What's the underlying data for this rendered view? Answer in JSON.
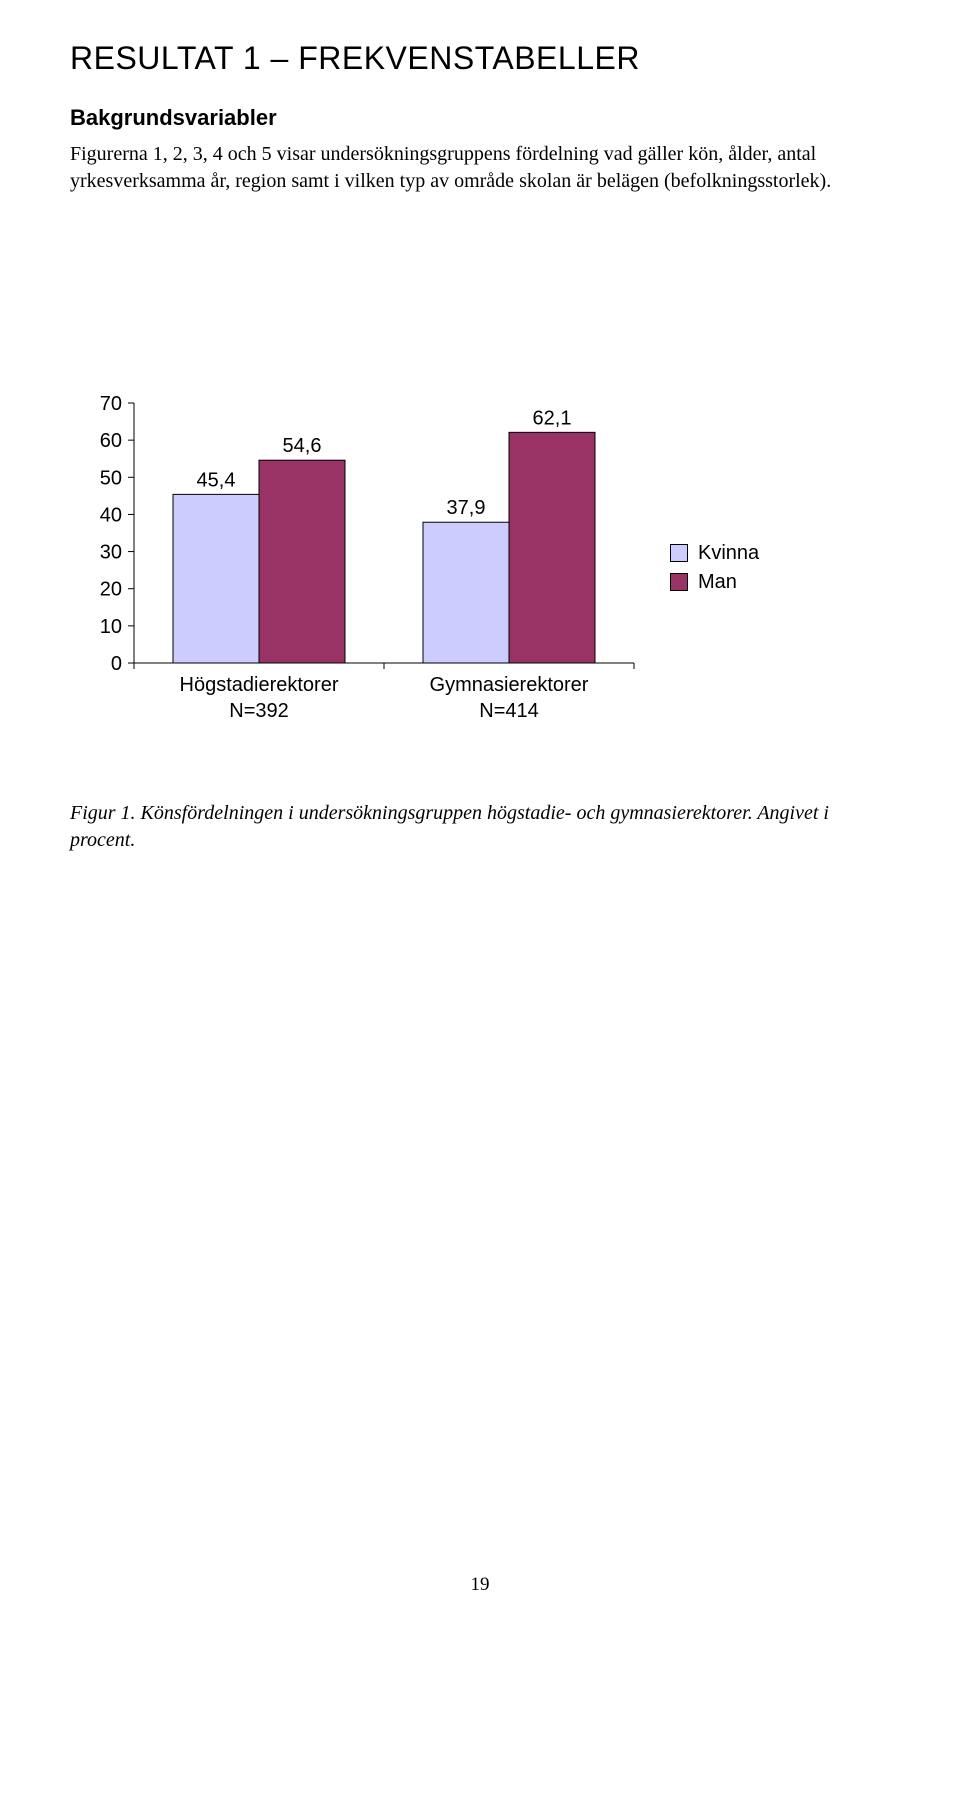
{
  "heading": "RESULTAT 1 – FREKVENSTABELLER",
  "subheading": "Bakgrundsvariabler",
  "body_text": "Figurerna 1, 2, 3, 4 och 5 visar undersökningsgruppens fördelning vad gäller kön, ålder, antal yrkesverksamma år, region samt i vilken typ av område skolan är belägen (befolkningsstorlek).",
  "chart": {
    "type": "bar",
    "background_color": "#ffffff",
    "ylim": [
      0,
      70
    ],
    "ytick_step": 10,
    "yticks": [
      "0",
      "10",
      "20",
      "30",
      "40",
      "50",
      "60",
      "70"
    ],
    "axis_fontsize": 20,
    "label_fontsize": 20,
    "bar_border_color": "#000000",
    "tick_color": "#000000",
    "groups": [
      {
        "label_line1": "Högstadierektorer",
        "label_line2": "N=392",
        "bars": [
          {
            "value": 45.4,
            "label": "45,4",
            "color": "#ccccff"
          },
          {
            "value": 54.6,
            "label": "54,6",
            "color": "#993366"
          }
        ]
      },
      {
        "label_line1": "Gymnasierektorer",
        "label_line2": "N=414",
        "bars": [
          {
            "value": 37.9,
            "label": "37,9",
            "color": "#ccccff"
          },
          {
            "value": 62.1,
            "label": "62,1",
            "color": "#993366"
          }
        ]
      }
    ],
    "legend": [
      {
        "label": "Kvinna",
        "color": "#ccccff"
      },
      {
        "label": "Man",
        "color": "#993366"
      }
    ]
  },
  "caption": "Figur 1. Könsfördelningen i undersökningsgruppen högstadie- och gymnasierektorer. Angivet i procent.",
  "page_number": "19"
}
